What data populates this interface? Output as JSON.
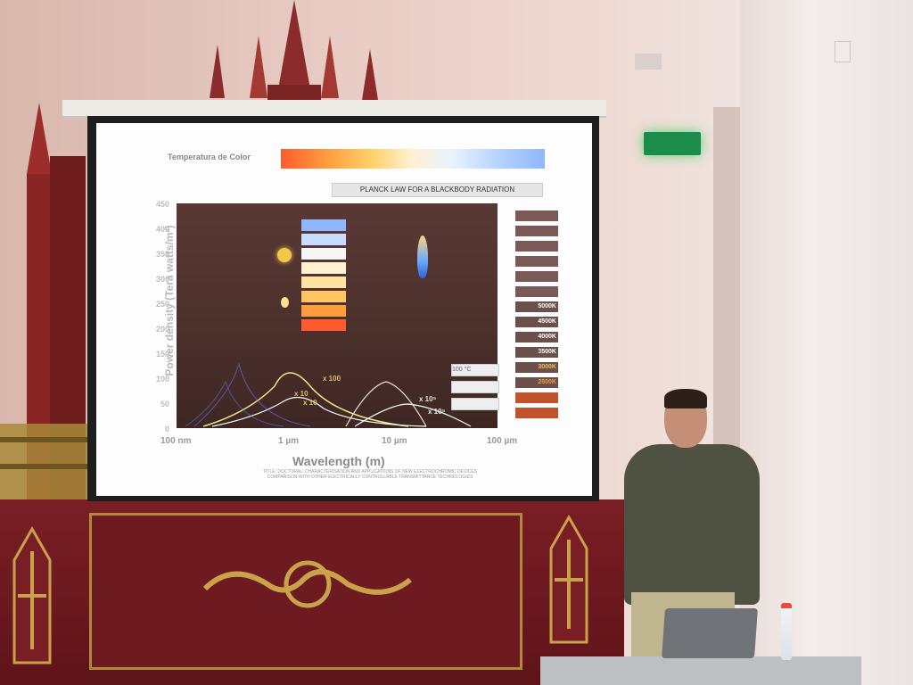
{
  "slide": {
    "color_temp_label": "Temperatura de Color",
    "planck_title": "PLANCK LAW FOR A BLACKBODY RADIATION",
    "y_axis_label": "Power density (Tera watts/m²)",
    "x_axis_label": "Wavelength (m)",
    "y_ticks": [
      "450",
      "400",
      "350",
      "300",
      "250",
      "200",
      "150",
      "100",
      "50",
      "0"
    ],
    "x_ticks": [
      "100 nm",
      "1 µm",
      "10 µm",
      "100 µm"
    ],
    "legend_temps": [
      "5000K",
      "4500K",
      "4000K",
      "3500K",
      "3000K",
      "2500K"
    ],
    "plot_badges": [
      "x 100",
      "x 10",
      "x 10",
      "x 10⁵",
      "x 10⁵"
    ],
    "plot_legend": [
      "100 °C"
    ],
    "footnote_line1": "TITLE: DOCTORAL: CHARACTERISATION AND APPLICATIONS OF NEW ELECTROCHROMIC DEVICES",
    "footnote_line2": "COMPARISON WITH OTHER ELECTRICALLY CONTROLLABLE TRANSMITTANCE TECHNOLOGIES"
  },
  "colors": {
    "altar": "#7a1e25",
    "gold": "#b08a3a",
    "exit_sign": "#1c8c4a",
    "plot_bg": "#4a2f2b"
  },
  "icons": [
    "sun-icon",
    "bulb-icon",
    "flame-icon",
    "exit-sign",
    "water-bottle",
    "laptop"
  ]
}
